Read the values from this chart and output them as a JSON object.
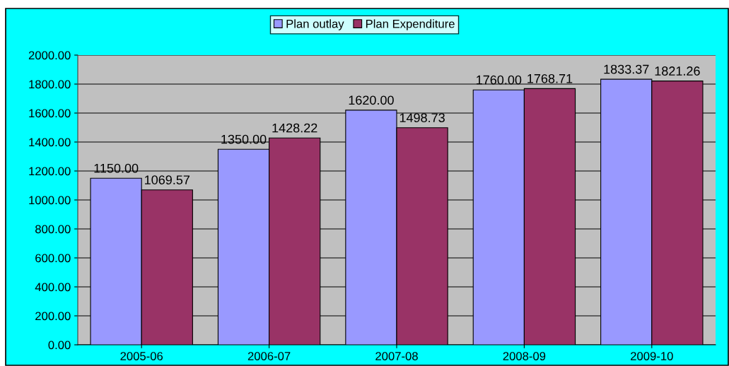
{
  "chart_data": {
    "type": "bar",
    "categories": [
      "2005-06",
      "2006-07",
      "2007-08",
      "2008-09",
      "2009-10"
    ],
    "series": [
      {
        "name": "Plan outlay",
        "color": "#9999ff",
        "values": [
          1150.0,
          1350.0,
          1620.0,
          1760.0,
          1833.37
        ],
        "value_labels": [
          "1150.00",
          "1350.00",
          "1620.00",
          "1760.00",
          "1833.37"
        ]
      },
      {
        "name": "Plan Expenditure",
        "color": "#993366",
        "values": [
          1069.57,
          1428.22,
          1498.73,
          1768.71,
          1821.26
        ],
        "value_labels": [
          "1069.57",
          "1428.22",
          "1498.73",
          "1768.71",
          "1821.26"
        ]
      }
    ],
    "ylim": [
      0,
      2000
    ],
    "yticks": [
      {
        "value": 0,
        "label": "0.00"
      },
      {
        "value": 200,
        "label": "200.00"
      },
      {
        "value": 400,
        "label": "400.00"
      },
      {
        "value": 600,
        "label": "600.00"
      },
      {
        "value": 800,
        "label": "800.00"
      },
      {
        "value": 1000,
        "label": "1000.00"
      },
      {
        "value": 1200,
        "label": "1200.00"
      },
      {
        "value": 1400,
        "label": "1400.00"
      },
      {
        "value": 1600,
        "label": "1600.00"
      },
      {
        "value": 1800,
        "label": "1800.00"
      },
      {
        "value": 2000,
        "label": "2000.00"
      }
    ],
    "grid": "y",
    "legend": "top"
  }
}
